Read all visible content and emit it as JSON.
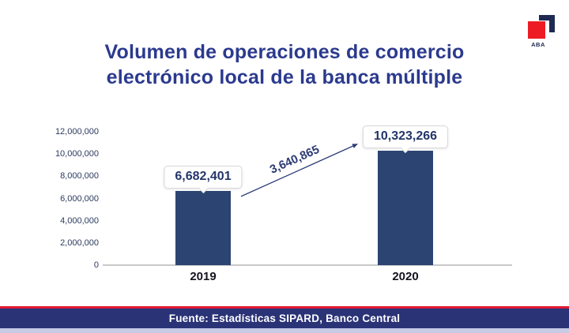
{
  "logo": {
    "text": "ABA"
  },
  "title": {
    "lines": [
      "Volumen de operaciones de comercio",
      "electrónico local de la banca múltiple"
    ]
  },
  "footer": {
    "source": "Fuente: Estadísticas SIPARD, Banco Central"
  },
  "colors": {
    "bar_navy": "#2b4472",
    "title_blue": "#2b3a8e",
    "footer_navy": "#2b3377",
    "red_line": "#e01b32",
    "logo_red": "#ed1c24",
    "axis_gray": "#c9c9c9"
  },
  "chart_data": {
    "type": "bar",
    "title": "Volumen de operaciones de comercio electrónico local de la banca múltiple",
    "categories": [
      "2019",
      "2020"
    ],
    "values": [
      6682401,
      10323266
    ],
    "value_labels": [
      "6,682,401",
      "10,323,266"
    ],
    "annotation": {
      "text": "3,640,865"
    },
    "y_ticks": [
      "12,000,000",
      "10,000,000",
      "8,000,000",
      "6,000,000",
      "4,000,000",
      "2,000,000",
      "0"
    ],
    "ylim": [
      0,
      12000000
    ],
    "xlabel": "",
    "ylabel": "",
    "grid": false,
    "legend": false,
    "source": "Fuente: Estadísticas SIPARD, Banco Central"
  }
}
